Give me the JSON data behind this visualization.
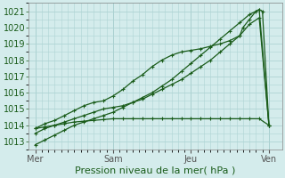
{
  "xlabel": "Pression niveau de la mer( hPa )",
  "ylim": [
    1012.5,
    1021.5
  ],
  "yticks": [
    1013,
    1014,
    1015,
    1016,
    1017,
    1018,
    1019,
    1020,
    1021
  ],
  "day_labels": [
    "Mer",
    "Sam",
    "Jeu",
    "Ven"
  ],
  "day_positions": [
    0,
    24,
    48,
    72
  ],
  "xlim": [
    -2,
    76
  ],
  "bg_color": "#d4ecec",
  "grid_color": "#aed4d4",
  "line_color": "#1a5c1a",
  "flat_x": [
    0,
    3,
    6,
    9,
    12,
    15,
    18,
    21,
    24,
    27,
    30,
    33,
    36,
    39,
    42,
    45,
    48,
    51,
    54,
    57,
    60,
    63,
    66,
    69,
    72
  ],
  "flat_y": [
    1013.8,
    1013.9,
    1014.0,
    1014.1,
    1014.2,
    1014.25,
    1014.3,
    1014.35,
    1014.4,
    1014.4,
    1014.4,
    1014.4,
    1014.4,
    1014.4,
    1014.4,
    1014.4,
    1014.4,
    1014.4,
    1014.4,
    1014.4,
    1014.4,
    1014.4,
    1014.4,
    1014.4,
    1014.0
  ],
  "line2_x": [
    0,
    3,
    6,
    9,
    12,
    15,
    18,
    21,
    24,
    27,
    30,
    33,
    36,
    39,
    42,
    45,
    48,
    51,
    54,
    57,
    60,
    63,
    66,
    69,
    72
  ],
  "line2_y": [
    1013.5,
    1013.8,
    1014.0,
    1014.2,
    1014.4,
    1014.6,
    1014.8,
    1015.0,
    1015.1,
    1015.2,
    1015.4,
    1015.6,
    1015.9,
    1016.2,
    1016.5,
    1016.8,
    1017.2,
    1017.6,
    1018.0,
    1018.5,
    1019.0,
    1019.5,
    1020.2,
    1020.6,
    1014.0
  ],
  "line3_x": [
    0,
    3,
    6,
    9,
    12,
    15,
    18,
    21,
    24,
    27,
    30,
    33,
    36,
    39,
    42,
    45,
    48,
    51,
    54,
    57,
    60,
    63,
    66,
    69,
    72
  ],
  "line3_y": [
    1012.8,
    1013.1,
    1013.4,
    1013.7,
    1014.0,
    1014.2,
    1014.4,
    1014.6,
    1014.8,
    1015.1,
    1015.4,
    1015.7,
    1016.0,
    1016.4,
    1016.8,
    1017.3,
    1017.8,
    1018.3,
    1018.8,
    1019.3,
    1019.8,
    1020.3,
    1020.8,
    1021.1,
    1014.0
  ],
  "line4_x": [
    0,
    3,
    6,
    9,
    12,
    15,
    18,
    21,
    24,
    27,
    30,
    33,
    36,
    39,
    42,
    45,
    48,
    51,
    54,
    57,
    60,
    63,
    64,
    66,
    68,
    69,
    70,
    72
  ],
  "line4_y": [
    1013.8,
    1014.1,
    1014.3,
    1014.6,
    1014.9,
    1015.2,
    1015.4,
    1015.5,
    1015.8,
    1016.2,
    1016.7,
    1017.1,
    1017.6,
    1018.0,
    1018.3,
    1018.5,
    1018.6,
    1018.7,
    1018.85,
    1019.0,
    1019.2,
    1019.5,
    1020.0,
    1020.5,
    1021.0,
    1021.1,
    1021.0,
    1014.0
  ]
}
